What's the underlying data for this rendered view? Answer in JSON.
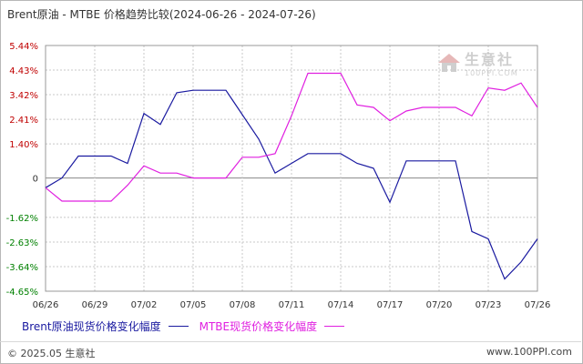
{
  "title": "Brent原油 - MTBE 价格趋势比较(2024-06-26 - 2024-07-26)",
  "watermark": {
    "name": "生意社",
    "url": "100PPI.COM"
  },
  "footer": {
    "copyright": "© 2025.05 生意社",
    "site": "www.100PPI.com"
  },
  "colors": {
    "brent": "#1a1aa0",
    "mtbe": "#e020e0",
    "axis_pos": "#c00000",
    "axis_neg": "#008000"
  },
  "chart_data": {
    "type": "line",
    "ylim": [
      -4.65,
      5.44
    ],
    "yticks": [
      5.44,
      4.43,
      3.42,
      2.41,
      1.4,
      0,
      -1.62,
      -2.63,
      -3.64,
      -4.65
    ],
    "ytick_labels": [
      "5.44%",
      "4.43%",
      "3.42%",
      "2.41%",
      "1.40%",
      "0",
      "-1.62%",
      "-2.63%",
      "-3.64%",
      "-4.65%"
    ],
    "xtick_labels": [
      "06/26",
      "06/29",
      "07/02",
      "07/05",
      "07/08",
      "07/11",
      "07/14",
      "07/17",
      "07/20",
      "07/23",
      "07/26"
    ],
    "x": [
      "06/26",
      "06/27",
      "06/28",
      "06/29",
      "06/30",
      "07/01",
      "07/02",
      "07/03",
      "07/04",
      "07/05",
      "07/06",
      "07/07",
      "07/08",
      "07/09",
      "07/10",
      "07/11",
      "07/12",
      "07/13",
      "07/14",
      "07/15",
      "07/16",
      "07/17",
      "07/18",
      "07/19",
      "07/20",
      "07/21",
      "07/22",
      "07/23",
      "07/24",
      "07/25",
      "07/26"
    ],
    "series": [
      {
        "name": "Brent原油现货价格变化幅度",
        "values": [
          -0.4,
          0,
          0.9,
          0.9,
          0.9,
          0.6,
          2.65,
          2.2,
          3.5,
          3.6,
          3.6,
          3.6,
          2.6,
          1.6,
          0.2,
          0.6,
          1.0,
          1.0,
          1.0,
          0.6,
          0.4,
          -1.0,
          0.7,
          0.7,
          0.7,
          0.7,
          -2.2,
          -2.5,
          -4.15,
          -3.45,
          -2.5
        ]
      },
      {
        "name": "MTBE现货价格变化幅度",
        "values": [
          -0.4,
          -0.95,
          -0.95,
          -0.95,
          -0.95,
          -0.3,
          0.5,
          0.2,
          0.2,
          0,
          0,
          0,
          0.85,
          0.85,
          1.0,
          2.55,
          4.3,
          4.3,
          4.3,
          3.0,
          2.9,
          2.35,
          2.75,
          2.9,
          2.9,
          2.9,
          2.55,
          3.7,
          3.6,
          3.9,
          2.9
        ]
      }
    ]
  }
}
